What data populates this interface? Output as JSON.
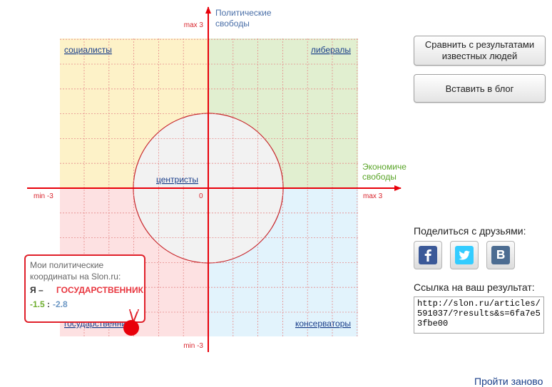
{
  "chart": {
    "y_axis_label_line1": "Политические",
    "y_axis_label_line2": "свободы",
    "x_axis_label_line1": "Экономические",
    "x_axis_label_line2": "свободы",
    "y_max_label": "max 3",
    "y_min_label": "min -3",
    "x_max_label": "max 3",
    "x_min_label": "min -3",
    "origin_label": "0",
    "quadrants": {
      "top_left": "социалисты",
      "top_right": "либералы",
      "bottom_left": "государственники",
      "bottom_right": "консерваторы",
      "center": "центристы"
    }
  },
  "result": {
    "title": "Мои политические координаты на Slon.ru:",
    "prefix": "Я –",
    "type": "ГОСУДАРСТВЕННИК",
    "x_value": "-1.5",
    "separator": ":",
    "y_value": "-2.8"
  },
  "chart_data": {
    "type": "scatter",
    "x": [
      -1.5
    ],
    "y": [
      -2.8
    ],
    "xlim": [
      -3,
      3
    ],
    "ylim": [
      -3,
      3
    ],
    "xlabel": "Экономические свободы",
    "ylabel": "Политические свободы",
    "grid": true
  },
  "buttons": {
    "compare": "Сравнить с результатами известных людей",
    "blog": "Вставить в блог"
  },
  "share": {
    "label": "Поделиться с друзьями:",
    "icons": [
      "facebook-icon",
      "twitter-icon",
      "vkontakte-icon"
    ]
  },
  "link": {
    "label": "Ссылка на ваш результат:",
    "url": "http://slon.ru/articles/591037/?results&s=6fa7e53fbe00"
  },
  "restart": "Пройти заново",
  "colors": {
    "axis": "#e8000a",
    "socialists": "#fdf2c8",
    "liberals": "#e1efd0",
    "statists": "#fde1e2",
    "conservatives": "#e2f3fc",
    "centrists": "#f2f2f2"
  }
}
